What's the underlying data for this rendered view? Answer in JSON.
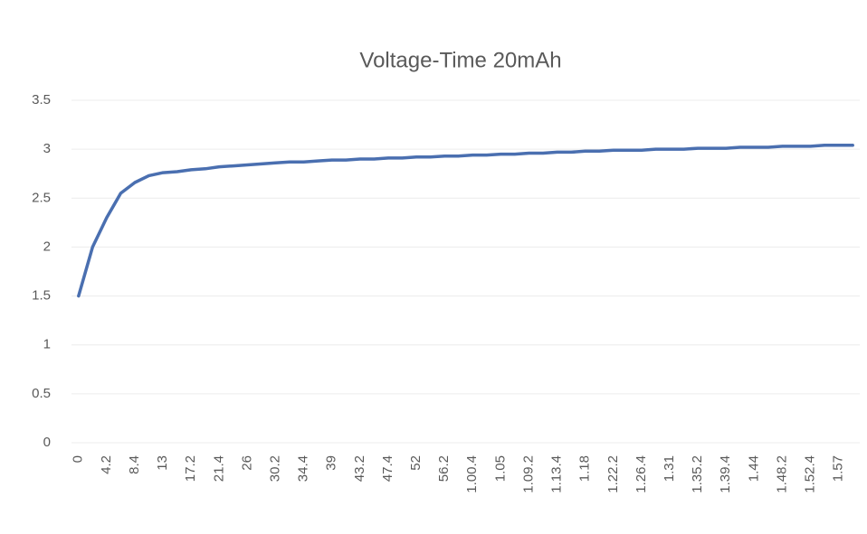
{
  "chart_data": {
    "type": "line",
    "title": "Voltage-Time 20mAh",
    "categories": [
      "0",
      null,
      "4.2",
      null,
      "8.4",
      null,
      "13",
      null,
      "17.2",
      null,
      "21.4",
      null,
      "26",
      null,
      "30.2",
      null,
      "34.4",
      null,
      "39",
      null,
      "43.2",
      null,
      "47.4",
      null,
      "52",
      null,
      "56.2",
      null,
      "1.00.4",
      null,
      "1.05",
      null,
      "1.09.2",
      null,
      "1.13.4",
      null,
      "1.18",
      null,
      "1.22.2",
      null,
      "1.26.4",
      null,
      "1.31",
      null,
      "1.35.2",
      null,
      "1.39.4",
      null,
      "1.44",
      null,
      "1.48.2",
      null,
      "1.52.4",
      null,
      "1.57",
      null
    ],
    "series": [
      {
        "color": "#4a6fb0",
        "values": [
          1.5,
          2.0,
          2.3,
          2.55,
          2.66,
          2.73,
          2.76,
          2.77,
          2.79,
          2.8,
          2.82,
          2.83,
          2.84,
          2.85,
          2.86,
          2.87,
          2.87,
          2.88,
          2.89,
          2.89,
          2.9,
          2.9,
          2.91,
          2.91,
          2.92,
          2.92,
          2.93,
          2.93,
          2.94,
          2.94,
          2.95,
          2.95,
          2.96,
          2.96,
          2.97,
          2.97,
          2.98,
          2.98,
          2.99,
          2.99,
          2.99,
          3.0,
          3.0,
          3.0,
          3.01,
          3.01,
          3.01,
          3.02,
          3.02,
          3.02,
          3.03,
          3.03,
          3.03,
          3.04,
          3.04,
          3.04
        ]
      }
    ],
    "ylim": [
      0,
      3.5
    ],
    "yticks": [
      0,
      0.5,
      1,
      1.5,
      2,
      2.5,
      3,
      3.5
    ],
    "grid": true
  }
}
